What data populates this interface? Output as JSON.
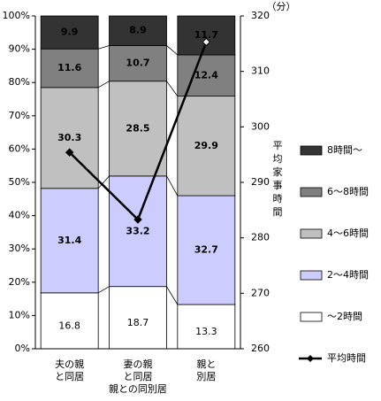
{
  "chart_data": {
    "type": "stacked-bar-line",
    "x_label": "親との同別居",
    "y2_label": "平均家事時間",
    "y2_unit": "（分）",
    "categories": [
      [
        "夫の親",
        "と同居"
      ],
      [
        "妻の親",
        "と同居"
      ],
      [
        "親と",
        "別居"
      ]
    ],
    "series": [
      {
        "name": "～2時間",
        "color": "#ffffff",
        "values": [
          16.8,
          18.7,
          13.3
        ]
      },
      {
        "name": "2～4時間",
        "color": "#ccccff",
        "values": [
          31.4,
          33.2,
          32.7
        ]
      },
      {
        "name": "4～6時間",
        "color": "#c0c0c0",
        "values": [
          30.3,
          28.5,
          29.9
        ]
      },
      {
        "name": "6～8時間",
        "color": "#808080",
        "values": [
          11.6,
          10.7,
          12.4
        ]
      },
      {
        "name": "8時間～",
        "color": "#333333",
        "values": [
          9.9,
          8.9,
          11.7
        ]
      },
      {
        "name": "平均時間",
        "color": "#000000",
        "axis": "y2",
        "values": [
          295.4,
          283.3,
          315.3
        ]
      }
    ],
    "ylim": [
      0,
      100
    ],
    "yticks": [
      {
        "value": 0,
        "label": "0%"
      },
      {
        "value": 10,
        "label": "10%"
      },
      {
        "value": 20,
        "label": "20%"
      },
      {
        "value": 30,
        "label": "30%"
      },
      {
        "value": 40,
        "label": "40%"
      },
      {
        "value": 50,
        "label": "50%"
      },
      {
        "value": 60,
        "label": "60%"
      },
      {
        "value": 70,
        "label": "70%"
      },
      {
        "value": 80,
        "label": "80%"
      },
      {
        "value": 90,
        "label": "90%"
      },
      {
        "value": 100,
        "label": "100%"
      }
    ],
    "y2lim": [
      260,
      320
    ],
    "y2ticks": [
      260,
      270,
      280,
      290,
      300,
      310,
      320
    ]
  }
}
